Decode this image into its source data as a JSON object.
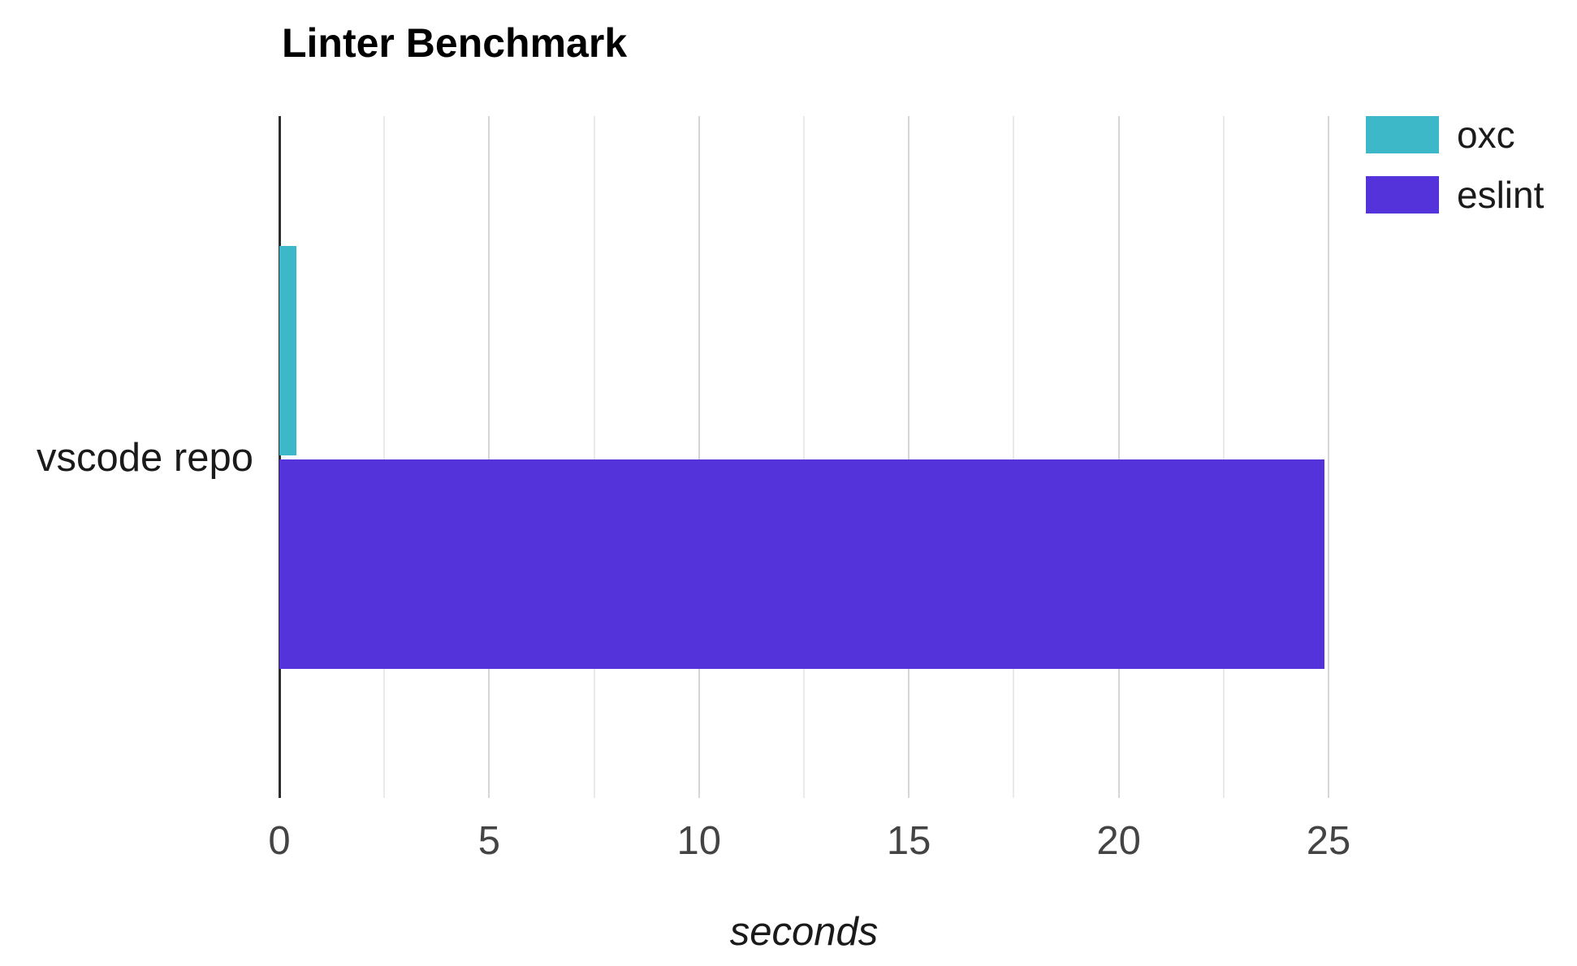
{
  "chart_data": {
    "type": "bar",
    "orientation": "horizontal",
    "title": "Linter Benchmark",
    "xlabel": "seconds",
    "categories": [
      "vscode repo"
    ],
    "series": [
      {
        "name": "oxc",
        "color": "#3CB8C8",
        "values": [
          0.4
        ]
      },
      {
        "name": "eslint",
        "color": "#5533DA",
        "values": [
          24.9
        ]
      }
    ],
    "xlim": [
      0,
      25
    ],
    "x_ticks": [
      0,
      5,
      10,
      15,
      20,
      25
    ],
    "x_gridline_step": 2.5,
    "grid": true,
    "legend_position": "top-right",
    "colors": {
      "background": "#ffffff",
      "axis_line": "#2d2d2d",
      "gridline_minor": "#eaeaea",
      "gridline_major": "#d6d6d6",
      "tick_label": "#444444",
      "text": "#1a1a1a",
      "title": "#000000"
    }
  }
}
